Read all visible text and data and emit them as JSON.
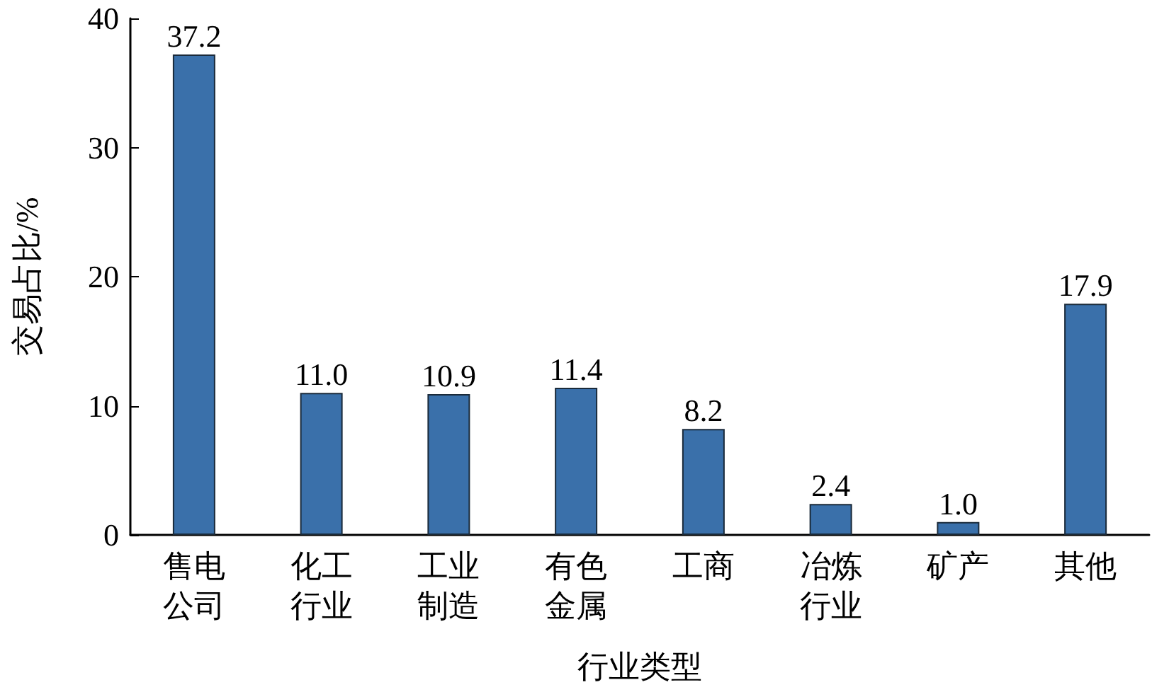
{
  "chart_data": {
    "type": "bar",
    "xlabel": "行业类型",
    "ylabel": "交易占比/%",
    "categories": [
      "售电公司",
      "化工行业",
      "工业制造",
      "有色金属",
      "工商",
      "冶炼行业",
      "矿产",
      "其他"
    ],
    "values": [
      37.2,
      11.0,
      10.9,
      11.4,
      8.2,
      2.4,
      1.0,
      17.9
    ],
    "value_labels": [
      "37.2",
      "11.0",
      "10.9",
      "11.4",
      "8.2",
      "2.4",
      "1.0",
      "17.9"
    ],
    "color": "#3a70aa",
    "ylim": [
      0,
      40
    ],
    "yticks": [
      0,
      10,
      20,
      30,
      40
    ],
    "grid": false
  }
}
